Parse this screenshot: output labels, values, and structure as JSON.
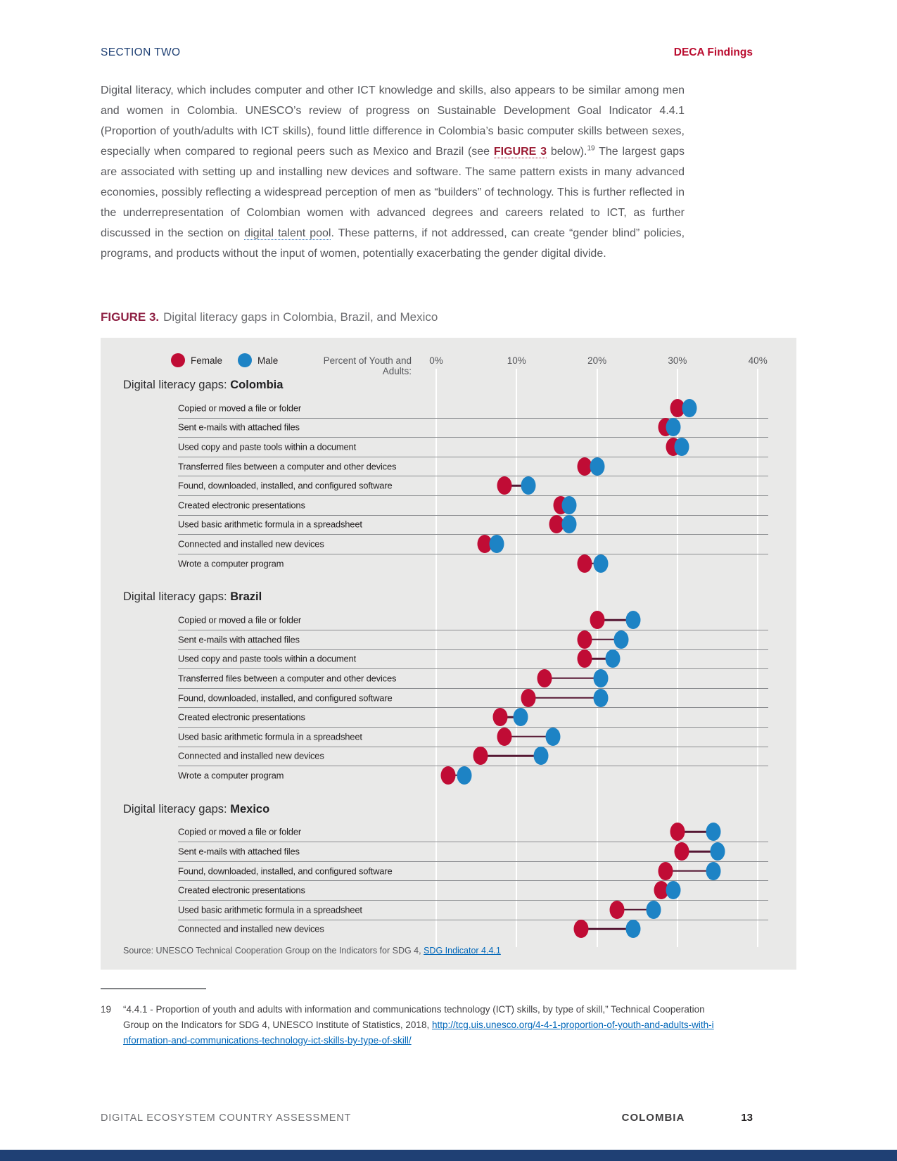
{
  "header": {
    "section": "SECTION TWO",
    "findings": "DECA Findings"
  },
  "paragraph": {
    "p1": "Digital literacy, which includes computer and other ICT knowledge and skills, also appears to be similar among men and women in Colombia. UNESCO’s review of progress on Sustainable Development Goal Indicator 4.4.1 (Proportion of youth/adults with ICT skills), found little difference in Colombia’s basic computer skills between sexes, especially when compared to regional peers such as Mexico and Brazil (see ",
    "figure_ref": "FIGURE 3",
    "p2": " below).",
    "footnote_marker": "19",
    "p3": " The largest gaps are associated with setting up and installing new devices and software. The same pattern exists in many advanced economies, possibly reflecting a widespread perception of men as “builders” of technology. This is further reflected in the underrepresentation of Colombian women with advanced degrees and careers related to ICT, as further discussed in the section on ",
    "link_text": "digital talent pool",
    "p4": ". These patterns, if not addressed, can create “gender blind” policies, programs, and products without the input of women, potentially exacerbating the gender digital divide."
  },
  "figure": {
    "label": "FIGURE 3.",
    "title": "Digital literacy gaps in Colombia, Brazil, and Mexico",
    "legend": {
      "female": "Female",
      "male": "Male"
    },
    "axis": {
      "label": "Percent of Youth and Adults:",
      "ticks": [
        "0%",
        "10%",
        "20%",
        "30%",
        "40%"
      ],
      "tick_values": [
        0,
        10,
        20,
        30,
        40
      ]
    },
    "colors": {
      "female": "#c00c35",
      "male": "#1d83c5",
      "connector": "#551733"
    },
    "source_prefix": "Source: UNESCO Technical Cooperation Group on the Indicators for SDG 4, ",
    "source_link": "SDG Indicator 4.4.1"
  },
  "chart_data": {
    "type": "dumbbell",
    "unit": "percent of youth and adults",
    "series_names": [
      "Female",
      "Male"
    ],
    "xlim": [
      0,
      44
    ],
    "grid": true,
    "groups": [
      {
        "title_prefix": "Digital literacy gaps: ",
        "country": "Colombia",
        "rows": [
          {
            "label": "Copied or moved a file or folder",
            "female": 30,
            "male": 31.5
          },
          {
            "label": "Sent e-mails with attached files",
            "female": 28.5,
            "male": 29.5
          },
          {
            "label": "Used copy and paste tools within a document",
            "female": 29.5,
            "male": 30.5
          },
          {
            "label": "Transferred files between a computer and other devices",
            "female": 18.5,
            "male": 20
          },
          {
            "label": "Found, downloaded, installed, and configured software",
            "female": 8.5,
            "male": 11.5
          },
          {
            "label": "Created electronic presentations",
            "female": 15.5,
            "male": 16.5
          },
          {
            "label": "Used basic arithmetic formula in a spreadsheet",
            "female": 15,
            "male": 16.5
          },
          {
            "label": "Connected and installed new devices",
            "female": 6,
            "male": 7.5
          },
          {
            "label": "Wrote a computer program",
            "female": 18.5,
            "male": 20.5
          }
        ]
      },
      {
        "title_prefix": "Digital literacy gaps: ",
        "country": "Brazil",
        "rows": [
          {
            "label": "Copied or moved a file or folder",
            "female": 20,
            "male": 24.5
          },
          {
            "label": "Sent e-mails with attached files",
            "female": 18.5,
            "male": 23
          },
          {
            "label": "Used copy and paste tools within a document",
            "female": 18.5,
            "male": 22
          },
          {
            "label": "Transferred files between a computer and other devices",
            "female": 13.5,
            "male": 20.5
          },
          {
            "label": "Found, downloaded, installed, and configured software",
            "female": 11.5,
            "male": 20.5
          },
          {
            "label": "Created electronic presentations",
            "female": 8,
            "male": 10.5
          },
          {
            "label": "Used basic arithmetic formula in a spreadsheet",
            "female": 8.5,
            "male": 14.5
          },
          {
            "label": "Connected and installed new devices",
            "female": 5.5,
            "male": 13
          },
          {
            "label": "Wrote a computer program",
            "female": 1.5,
            "male": 3.5
          }
        ]
      },
      {
        "title_prefix": "Digital literacy gaps: ",
        "country": "Mexico",
        "rows": [
          {
            "label": "Copied or moved a file or folder",
            "female": 30,
            "male": 34.5
          },
          {
            "label": "Sent e-mails with attached files",
            "female": 30.5,
            "male": 35
          },
          {
            "label": "Found, downloaded, installed, and configured software",
            "female": 28.5,
            "male": 34.5
          },
          {
            "label": "Created electronic presentations",
            "female": 28,
            "male": 29.5
          },
          {
            "label": "Used basic arithmetic formula in a spreadsheet",
            "female": 22.5,
            "male": 27
          },
          {
            "label": "Connected and installed new devices",
            "female": 18,
            "male": 24.5
          }
        ]
      }
    ]
  },
  "footnote": {
    "number": "19",
    "text": "“4.4.1 - Proportion of youth and adults with information and communications technology (ICT) skills, by type of skill,” Technical Cooperation Group on the Indicators for SDG 4, UNESCO Institute of Statistics, 2018, ",
    "link": "http://tcg.uis.unesco.org/4-4-1-proportion-of-youth-and-adults-with-information-and-communications-technology-ict-skills-by-type-of-skill/"
  },
  "footer": {
    "title": "DIGITAL ECOSYSTEM COUNTRY ASSESSMENT",
    "country": "COLOMBIA",
    "page": "13"
  }
}
